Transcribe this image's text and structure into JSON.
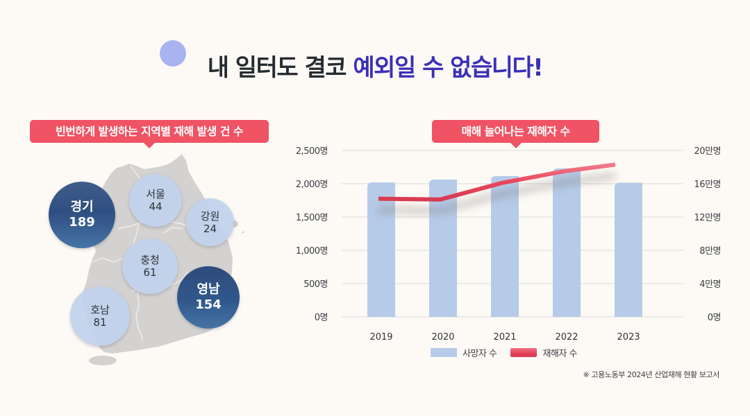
{
  "title": {
    "part1": "내 일터도 결코 ",
    "part2": "예외일 수 없습니다!"
  },
  "left_panel": {
    "badge": "빈번하게 발생하는 지역별 재해 발생 건 수",
    "regions": [
      {
        "name": "경기",
        "value": "189",
        "style": "dark"
      },
      {
        "name": "서울",
        "value": "44",
        "style": "light"
      },
      {
        "name": "강원",
        "value": "24",
        "style": "light"
      },
      {
        "name": "충청",
        "value": "61",
        "style": "light"
      },
      {
        "name": "영남",
        "value": "154",
        "style": "dark"
      },
      {
        "name": "호남",
        "value": "81",
        "style": "light"
      }
    ]
  },
  "colors": {
    "accent_title": "#3a2fb8",
    "badge": "#ef5364",
    "bar": "#b5cbe8",
    "line": "#e8475c",
    "map": "#d3d2d0",
    "region_light": "#c1d2ec",
    "region_dark": "#34548a"
  },
  "chart_data": {
    "type": "bar",
    "title": "매해 늘어나는 재해자 수",
    "categories": [
      "2019",
      "2020",
      "2021",
      "2022",
      "2023"
    ],
    "series": [
      {
        "name": "사망자 수",
        "type": "bar",
        "axis": "left",
        "values": [
          2020,
          2062,
          2114,
          2230,
          2016
        ]
      },
      {
        "name": "재해자 수",
        "type": "line",
        "axis": "right",
        "values": [
          142000,
          141000,
          161000,
          175000,
          183000
        ]
      }
    ],
    "y_left": {
      "ylim": [
        0,
        2500
      ],
      "ticks": [
        0,
        500,
        1000,
        1500,
        2000,
        2500
      ],
      "tick_labels": [
        "0명",
        "500명",
        "1,000명",
        "1,500명",
        "2,000명",
        "2,500명"
      ]
    },
    "y_right": {
      "ylim": [
        0,
        200000
      ],
      "ticks": [
        0,
        40000,
        80000,
        120000,
        160000,
        200000
      ],
      "tick_labels": [
        "0명",
        "4만명",
        "8만명",
        "12만명",
        "16만명",
        "20만명"
      ]
    },
    "grid": true,
    "legend": "bottom",
    "legend_entries": [
      "사망자 수",
      "재해자 수"
    ],
    "xlabel": "",
    "ylabel": ""
  },
  "source": "※ 고용노동부 2024년 산업재해 현황 보고서"
}
